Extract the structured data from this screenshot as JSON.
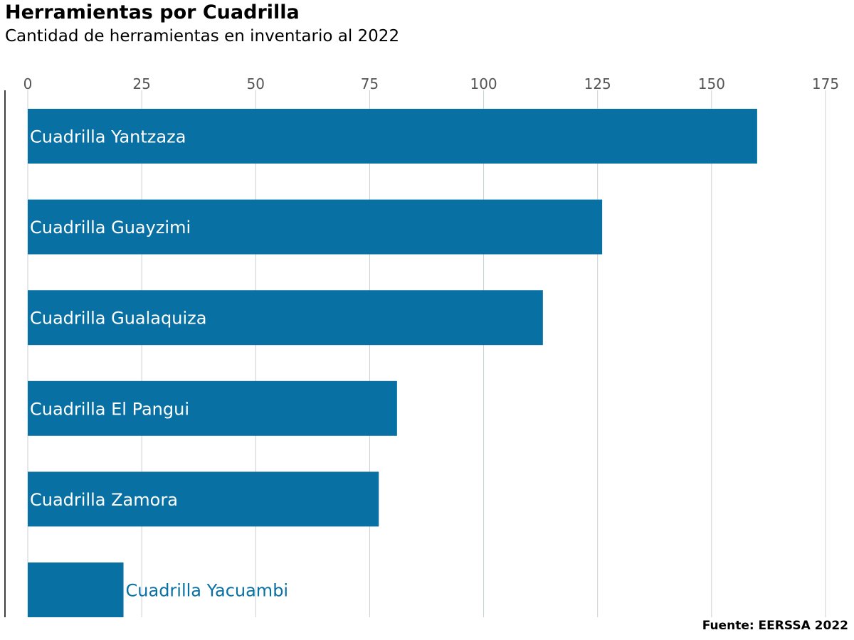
{
  "chart_data": {
    "type": "bar",
    "orientation": "horizontal",
    "title": "Herramientas por Cuadrilla",
    "subtitle": "Cantidad de herramientas en inventario al 2022",
    "source": "Fuente: EERSSA 2022",
    "categories": [
      "Cuadrilla Yantzaza",
      "Cuadrilla Guayzimi",
      "Cuadrilla Gualaquiza",
      "Cuadrilla El Pangui",
      "Cuadrilla Zamora",
      "Cuadrilla Yacuambi"
    ],
    "values": [
      160,
      126,
      113,
      81,
      77,
      21
    ],
    "xlim": [
      0,
      175
    ],
    "xticks": [
      "0",
      "25",
      "50",
      "75",
      "100",
      "125",
      "150",
      "175"
    ],
    "xtick_values": [
      0,
      25,
      50,
      75,
      100,
      125,
      150,
      175
    ],
    "grid": true,
    "axis_position": "top",
    "colors": {
      "bar": "#0870a3",
      "label_inside": "#ffffff",
      "label_outside": "#0870a3",
      "grid": "#c8d0d3"
    }
  }
}
